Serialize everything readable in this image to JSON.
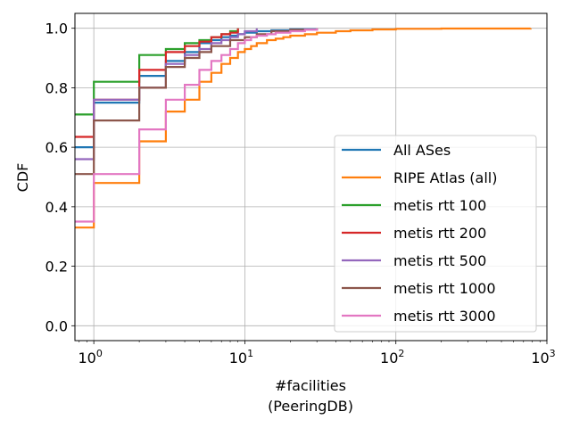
{
  "chart_data": {
    "type": "line",
    "xscale": "log",
    "xlim": [
      0.75,
      1000
    ],
    "ylim": [
      -0.05,
      1.05
    ],
    "xlabel_lines": [
      "#facilities",
      "(PeeringDB)"
    ],
    "ylabel": "CDF",
    "grid": true,
    "legend_position": "lower-right",
    "x_ticks": [
      {
        "value": 1,
        "base": "10",
        "exp": "0"
      },
      {
        "value": 10,
        "base": "10",
        "exp": "1"
      },
      {
        "value": 100,
        "base": "10",
        "exp": "2"
      },
      {
        "value": 1000,
        "base": "10",
        "exp": "3"
      }
    ],
    "y_ticks": [
      {
        "value": 0.0,
        "label": "0.0"
      },
      {
        "value": 0.2,
        "label": "0.2"
      },
      {
        "value": 0.4,
        "label": "0.4"
      },
      {
        "value": 0.6,
        "label": "0.6"
      },
      {
        "value": 0.8,
        "label": "0.8"
      },
      {
        "value": 1.0,
        "label": "1.0"
      }
    ],
    "series": [
      {
        "name": "All ASes",
        "color": "#1f77b4",
        "x": [
          0.7,
          1,
          2,
          3,
          4,
          5,
          6,
          7,
          8,
          9,
          10,
          12,
          15,
          20,
          30
        ],
        "y": [
          0.6,
          0.75,
          0.84,
          0.89,
          0.92,
          0.95,
          0.96,
          0.97,
          0.975,
          0.98,
          0.985,
          0.99,
          0.993,
          0.997,
          1.0
        ]
      },
      {
        "name": "RIPE Atlas (all)",
        "color": "#ff7f0e",
        "x": [
          0.7,
          1,
          2,
          3,
          4,
          5,
          6,
          7,
          8,
          9,
          10,
          11,
          12,
          14,
          16,
          18,
          20,
          25,
          30,
          40,
          50,
          70,
          100,
          200,
          780
        ],
        "y": [
          0.33,
          0.48,
          0.62,
          0.72,
          0.76,
          0.82,
          0.85,
          0.88,
          0.9,
          0.92,
          0.93,
          0.94,
          0.95,
          0.96,
          0.965,
          0.97,
          0.975,
          0.98,
          0.985,
          0.99,
          0.993,
          0.996,
          0.998,
          0.999,
          1.0
        ]
      },
      {
        "name": "metis rtt 100",
        "color": "#2ca02c",
        "x": [
          0.7,
          1,
          2,
          3,
          4,
          5,
          6,
          7,
          8,
          9
        ],
        "y": [
          0.71,
          0.82,
          0.91,
          0.93,
          0.95,
          0.96,
          0.97,
          0.98,
          0.99,
          1.0
        ]
      },
      {
        "name": "metis rtt 200",
        "color": "#d62728",
        "x": [
          0.7,
          1,
          2,
          3,
          4,
          5,
          6,
          7,
          8,
          9
        ],
        "y": [
          0.635,
          0.76,
          0.86,
          0.92,
          0.94,
          0.955,
          0.97,
          0.98,
          0.985,
          1.0
        ]
      },
      {
        "name": "metis rtt 500",
        "color": "#9467bd",
        "x": [
          0.7,
          1,
          2,
          3,
          4,
          5,
          6,
          7,
          8,
          9,
          10,
          12
        ],
        "y": [
          0.56,
          0.76,
          0.8,
          0.88,
          0.91,
          0.93,
          0.95,
          0.96,
          0.97,
          0.98,
          0.99,
          1.0
        ]
      },
      {
        "name": "metis rtt 1000",
        "color": "#8c564b",
        "x": [
          0.7,
          1,
          2,
          3,
          4,
          5,
          6,
          8,
          10,
          12,
          15,
          20,
          30
        ],
        "y": [
          0.51,
          0.69,
          0.8,
          0.87,
          0.9,
          0.92,
          0.94,
          0.96,
          0.97,
          0.98,
          0.99,
          0.995,
          1.0
        ]
      },
      {
        "name": "metis rtt 3000",
        "color": "#e377c2",
        "x": [
          0.7,
          1,
          2,
          3,
          4,
          5,
          6,
          7,
          8,
          9,
          10,
          11,
          12,
          14,
          16,
          20,
          25,
          30
        ],
        "y": [
          0.35,
          0.51,
          0.66,
          0.76,
          0.81,
          0.86,
          0.89,
          0.91,
          0.93,
          0.95,
          0.96,
          0.97,
          0.975,
          0.98,
          0.985,
          0.99,
          0.995,
          1.0
        ]
      }
    ]
  }
}
